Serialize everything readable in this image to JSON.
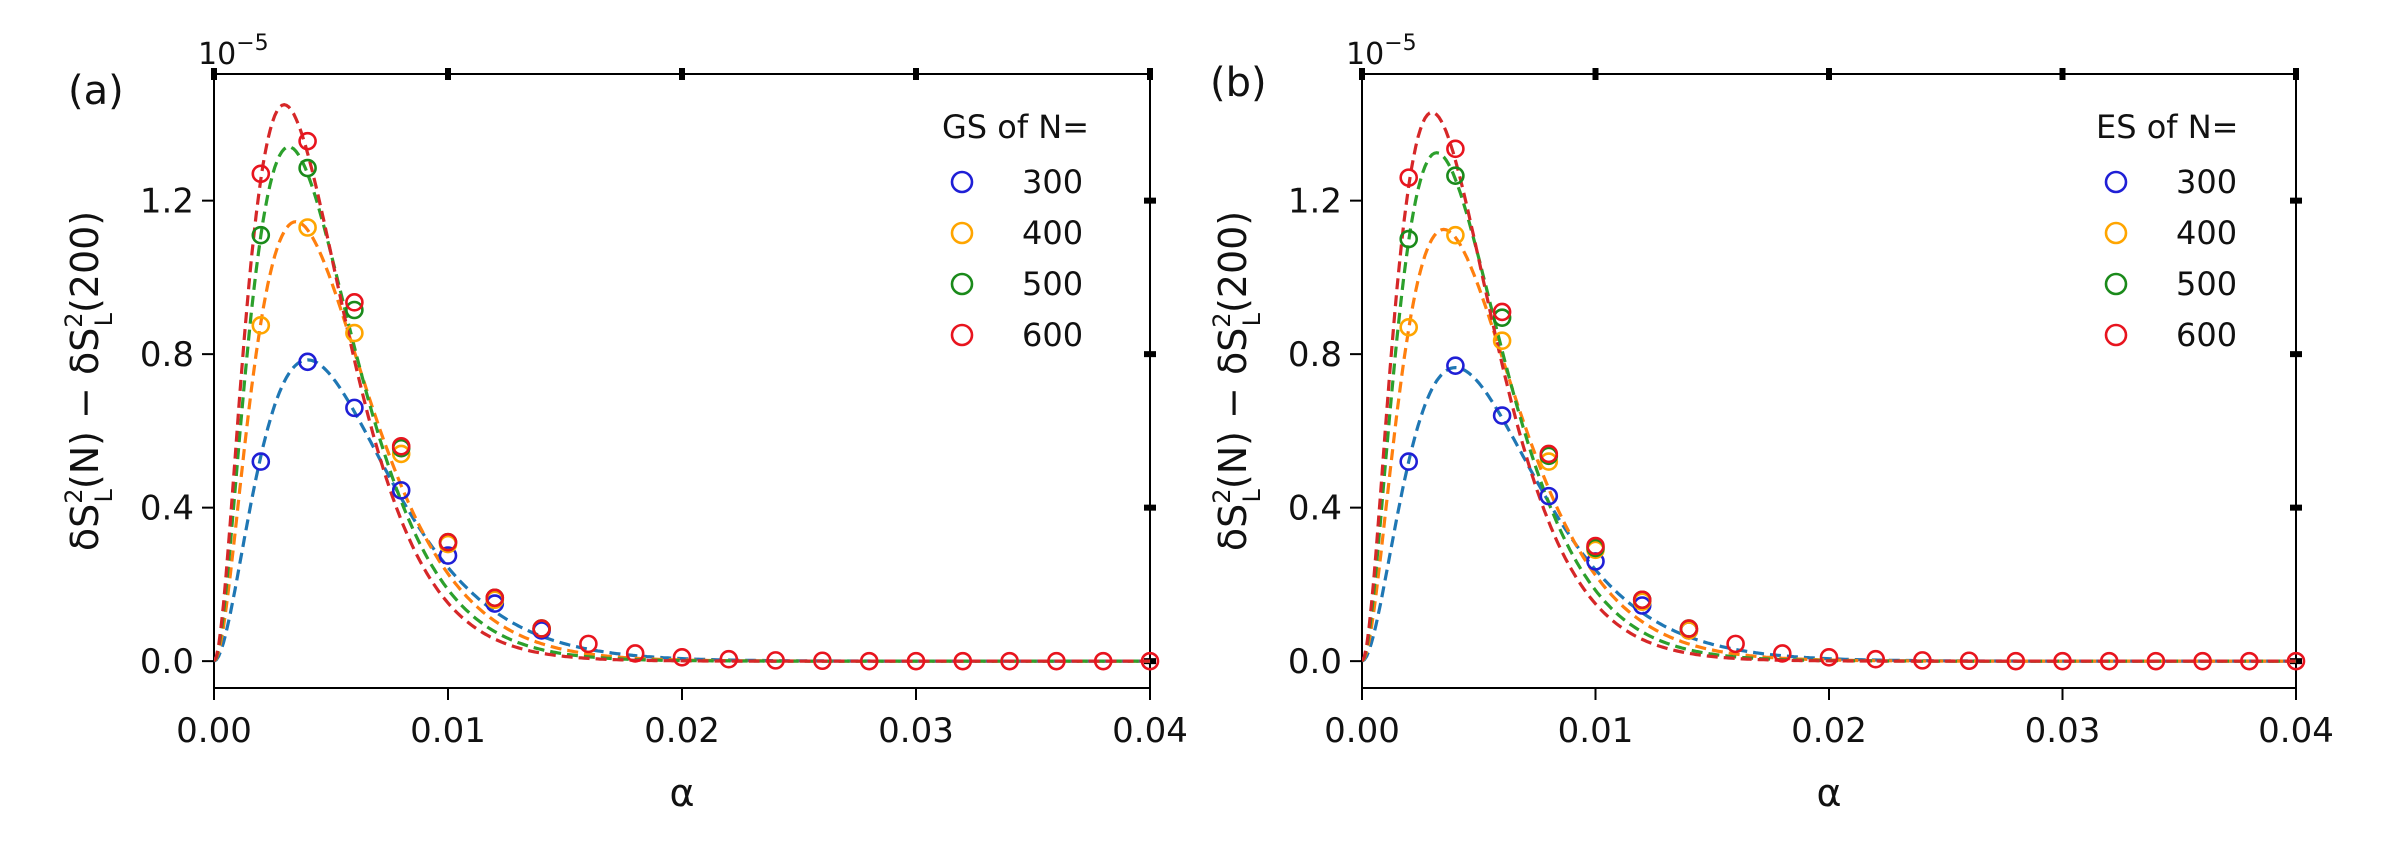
{
  "chart_data": [
    {
      "type": "scatter",
      "panel_label": "(a)",
      "xlabel": "α",
      "ylabel": "δS²_L(N) − δS²_L(200)",
      "ylabel_parts": {
        "base": "δS",
        "sup": "2",
        "sub": "L",
        "arg1": "(N) − δS",
        "arg2": "(200)"
      },
      "y_multiplier": "10⁻⁵",
      "y_mult_parts": {
        "base": "10",
        "exp": "−5"
      },
      "xlim": [
        0,
        0.04
      ],
      "ylim": [
        -0.07,
        1.53
      ],
      "x_ticks": [
        0,
        0.01,
        0.02,
        0.03,
        0.04
      ],
      "x_tick_labels": [
        "0.00",
        "0.01",
        "0.02",
        "0.03",
        "0.04"
      ],
      "y_ticks": [
        0,
        0.4,
        0.8,
        1.2
      ],
      "y_tick_labels": [
        "0.0",
        "0.4",
        "0.8",
        "1.2"
      ],
      "legend_title": "GS of N=",
      "legend_position": "top-right",
      "series": [
        {
          "name": "300",
          "marker_color": "#1f1fd6",
          "line_color": "#1f77b4",
          "peak": 0.785,
          "alpha_peak": 0.004,
          "x": [
            0.002,
            0.004,
            0.006,
            0.008,
            0.01,
            0.012,
            0.014
          ],
          "y": [
            0.52,
            0.78,
            0.66,
            0.445,
            0.275,
            0.15,
            0.08
          ]
        },
        {
          "name": "400",
          "marker_color": "#ffa500",
          "line_color": "#ff7f0e",
          "peak": 1.145,
          "alpha_peak": 0.0035,
          "x": [
            0.002,
            0.004,
            0.006,
            0.008,
            0.01,
            0.012,
            0.014
          ],
          "y": [
            0.875,
            1.13,
            0.855,
            0.54,
            0.305,
            0.16,
            0.085
          ]
        },
        {
          "name": "500",
          "marker_color": "#1a8a1a",
          "line_color": "#2ca02c",
          "peak": 1.34,
          "alpha_peak": 0.0032,
          "x": [
            0.002,
            0.004,
            0.006,
            0.008,
            0.01,
            0.012,
            0.014
          ],
          "y": [
            1.11,
            1.285,
            0.915,
            0.555,
            0.31,
            0.165,
            0.085
          ]
        },
        {
          "name": "600",
          "marker_color": "#e8141e",
          "line_color": "#d62728",
          "peak": 1.45,
          "alpha_peak": 0.003,
          "x": [
            0.002,
            0.004,
            0.006,
            0.008,
            0.01,
            0.012,
            0.014,
            0.016,
            0.018,
            0.02,
            0.022,
            0.024,
            0.026,
            0.028,
            0.03,
            0.032,
            0.034,
            0.036,
            0.038,
            0.04
          ],
          "y": [
            1.27,
            1.355,
            0.935,
            0.56,
            0.31,
            0.165,
            0.085,
            0.045,
            0.02,
            0.01,
            0.005,
            0.002,
            0.001,
            0,
            0,
            0,
            0,
            0,
            0,
            0
          ]
        }
      ]
    },
    {
      "type": "scatter",
      "panel_label": "(b)",
      "xlabel": "α",
      "ylabel": "δS²_L(N) − δS²_L(200)",
      "ylabel_parts": {
        "base": "δS",
        "sup": "2",
        "sub": "L",
        "arg1": "(N) − δS",
        "arg2": "(200)"
      },
      "y_multiplier": "10⁻⁵",
      "y_mult_parts": {
        "base": "10",
        "exp": "−5"
      },
      "xlim": [
        0,
        0.04
      ],
      "ylim": [
        -0.07,
        1.53
      ],
      "x_ticks": [
        0,
        0.01,
        0.02,
        0.03,
        0.04
      ],
      "x_tick_labels": [
        "0.00",
        "0.01",
        "0.02",
        "0.03",
        "0.04"
      ],
      "y_ticks": [
        0,
        0.4,
        0.8,
        1.2
      ],
      "y_tick_labels": [
        "0.0",
        "0.4",
        "0.8",
        "1.2"
      ],
      "legend_title": "ES of N=",
      "legend_position": "top-right",
      "series": [
        {
          "name": "300",
          "marker_color": "#1f1fd6",
          "line_color": "#1f77b4",
          "peak": 0.765,
          "alpha_peak": 0.004,
          "x": [
            0.002,
            0.004,
            0.006,
            0.008,
            0.01,
            0.012,
            0.014
          ],
          "y": [
            0.52,
            0.77,
            0.64,
            0.43,
            0.26,
            0.145,
            0.08
          ]
        },
        {
          "name": "400",
          "marker_color": "#ffa500",
          "line_color": "#ff7f0e",
          "peak": 1.125,
          "alpha_peak": 0.0035,
          "x": [
            0.002,
            0.004,
            0.006,
            0.008,
            0.01,
            0.012,
            0.014
          ],
          "y": [
            0.87,
            1.11,
            0.835,
            0.52,
            0.29,
            0.155,
            0.08
          ]
        },
        {
          "name": "500",
          "marker_color": "#1a8a1a",
          "line_color": "#2ca02c",
          "peak": 1.325,
          "alpha_peak": 0.0032,
          "x": [
            0.002,
            0.004,
            0.006,
            0.008,
            0.01,
            0.012,
            0.014
          ],
          "y": [
            1.1,
            1.265,
            0.895,
            0.535,
            0.295,
            0.16,
            0.085
          ]
        },
        {
          "name": "600",
          "marker_color": "#e8141e",
          "line_color": "#d62728",
          "peak": 1.43,
          "alpha_peak": 0.003,
          "x": [
            0.002,
            0.004,
            0.006,
            0.008,
            0.01,
            0.012,
            0.014,
            0.016,
            0.018,
            0.02,
            0.022,
            0.024,
            0.026,
            0.028,
            0.03,
            0.032,
            0.034,
            0.036,
            0.038,
            0.04
          ],
          "y": [
            1.26,
            1.335,
            0.91,
            0.54,
            0.3,
            0.16,
            0.085,
            0.045,
            0.02,
            0.01,
            0.005,
            0.002,
            0.001,
            0,
            0,
            0,
            0,
            0,
            0,
            0
          ]
        }
      ]
    }
  ]
}
